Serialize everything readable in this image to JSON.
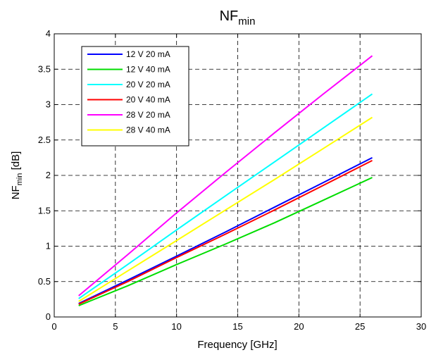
{
  "chart_data": {
    "type": "line",
    "title": {
      "main": "NF",
      "sub": "min"
    },
    "xlabel": "Frequency [GHz]",
    "ylabel": {
      "main": "NF",
      "sub": "min",
      "suffix": " [dB]"
    },
    "xlim": [
      0,
      30
    ],
    "ylim": [
      0,
      4
    ],
    "xticks": [
      0,
      5,
      10,
      15,
      20,
      25,
      30
    ],
    "yticks": [
      0,
      0.5,
      1,
      1.5,
      2,
      2.5,
      3,
      3.5,
      4
    ],
    "xtick_labels": [
      "0",
      "5",
      "10",
      "15",
      "20",
      "25",
      "30"
    ],
    "ytick_labels": [
      "0",
      "0.5",
      "1",
      "1.5",
      "2",
      "2.5",
      "3",
      "3.5",
      "4"
    ],
    "grid": true,
    "legend_position": "top-left",
    "series": [
      {
        "name": "12 V 20 mA",
        "color": "#0000ff",
        "x": [
          2,
          6,
          10,
          14,
          18,
          22,
          26
        ],
        "y": [
          0.19,
          0.52,
          0.86,
          1.2,
          1.55,
          1.9,
          2.25
        ]
      },
      {
        "name": "12 V 40 mA",
        "color": "#00dd00",
        "x": [
          2,
          6,
          10,
          14,
          18,
          22,
          26
        ],
        "y": [
          0.16,
          0.44,
          0.74,
          1.03,
          1.33,
          1.65,
          1.97
        ]
      },
      {
        "name": "20 V 20 mA",
        "color": "#00ffff",
        "x": [
          2,
          6,
          10,
          14,
          18,
          22,
          26
        ],
        "y": [
          0.26,
          0.74,
          1.23,
          1.71,
          2.19,
          2.67,
          3.15
        ]
      },
      {
        "name": "20 V 40 mA",
        "color": "#ff0000",
        "x": [
          2,
          6,
          10,
          14,
          18,
          22,
          26
        ],
        "y": [
          0.18,
          0.5,
          0.84,
          1.17,
          1.51,
          1.86,
          2.21
        ]
      },
      {
        "name": "28 V 20 mA",
        "color": "#ff00ff",
        "x": [
          2,
          6,
          10,
          14,
          18,
          22,
          26
        ],
        "y": [
          0.3,
          0.88,
          1.47,
          2.04,
          2.6,
          3.15,
          3.69
        ]
      },
      {
        "name": "28 V 40 mA",
        "color": "#ffff00",
        "x": [
          2,
          6,
          10,
          14,
          18,
          22,
          26
        ],
        "y": [
          0.22,
          0.65,
          1.08,
          1.51,
          1.94,
          2.38,
          2.82
        ]
      }
    ]
  }
}
